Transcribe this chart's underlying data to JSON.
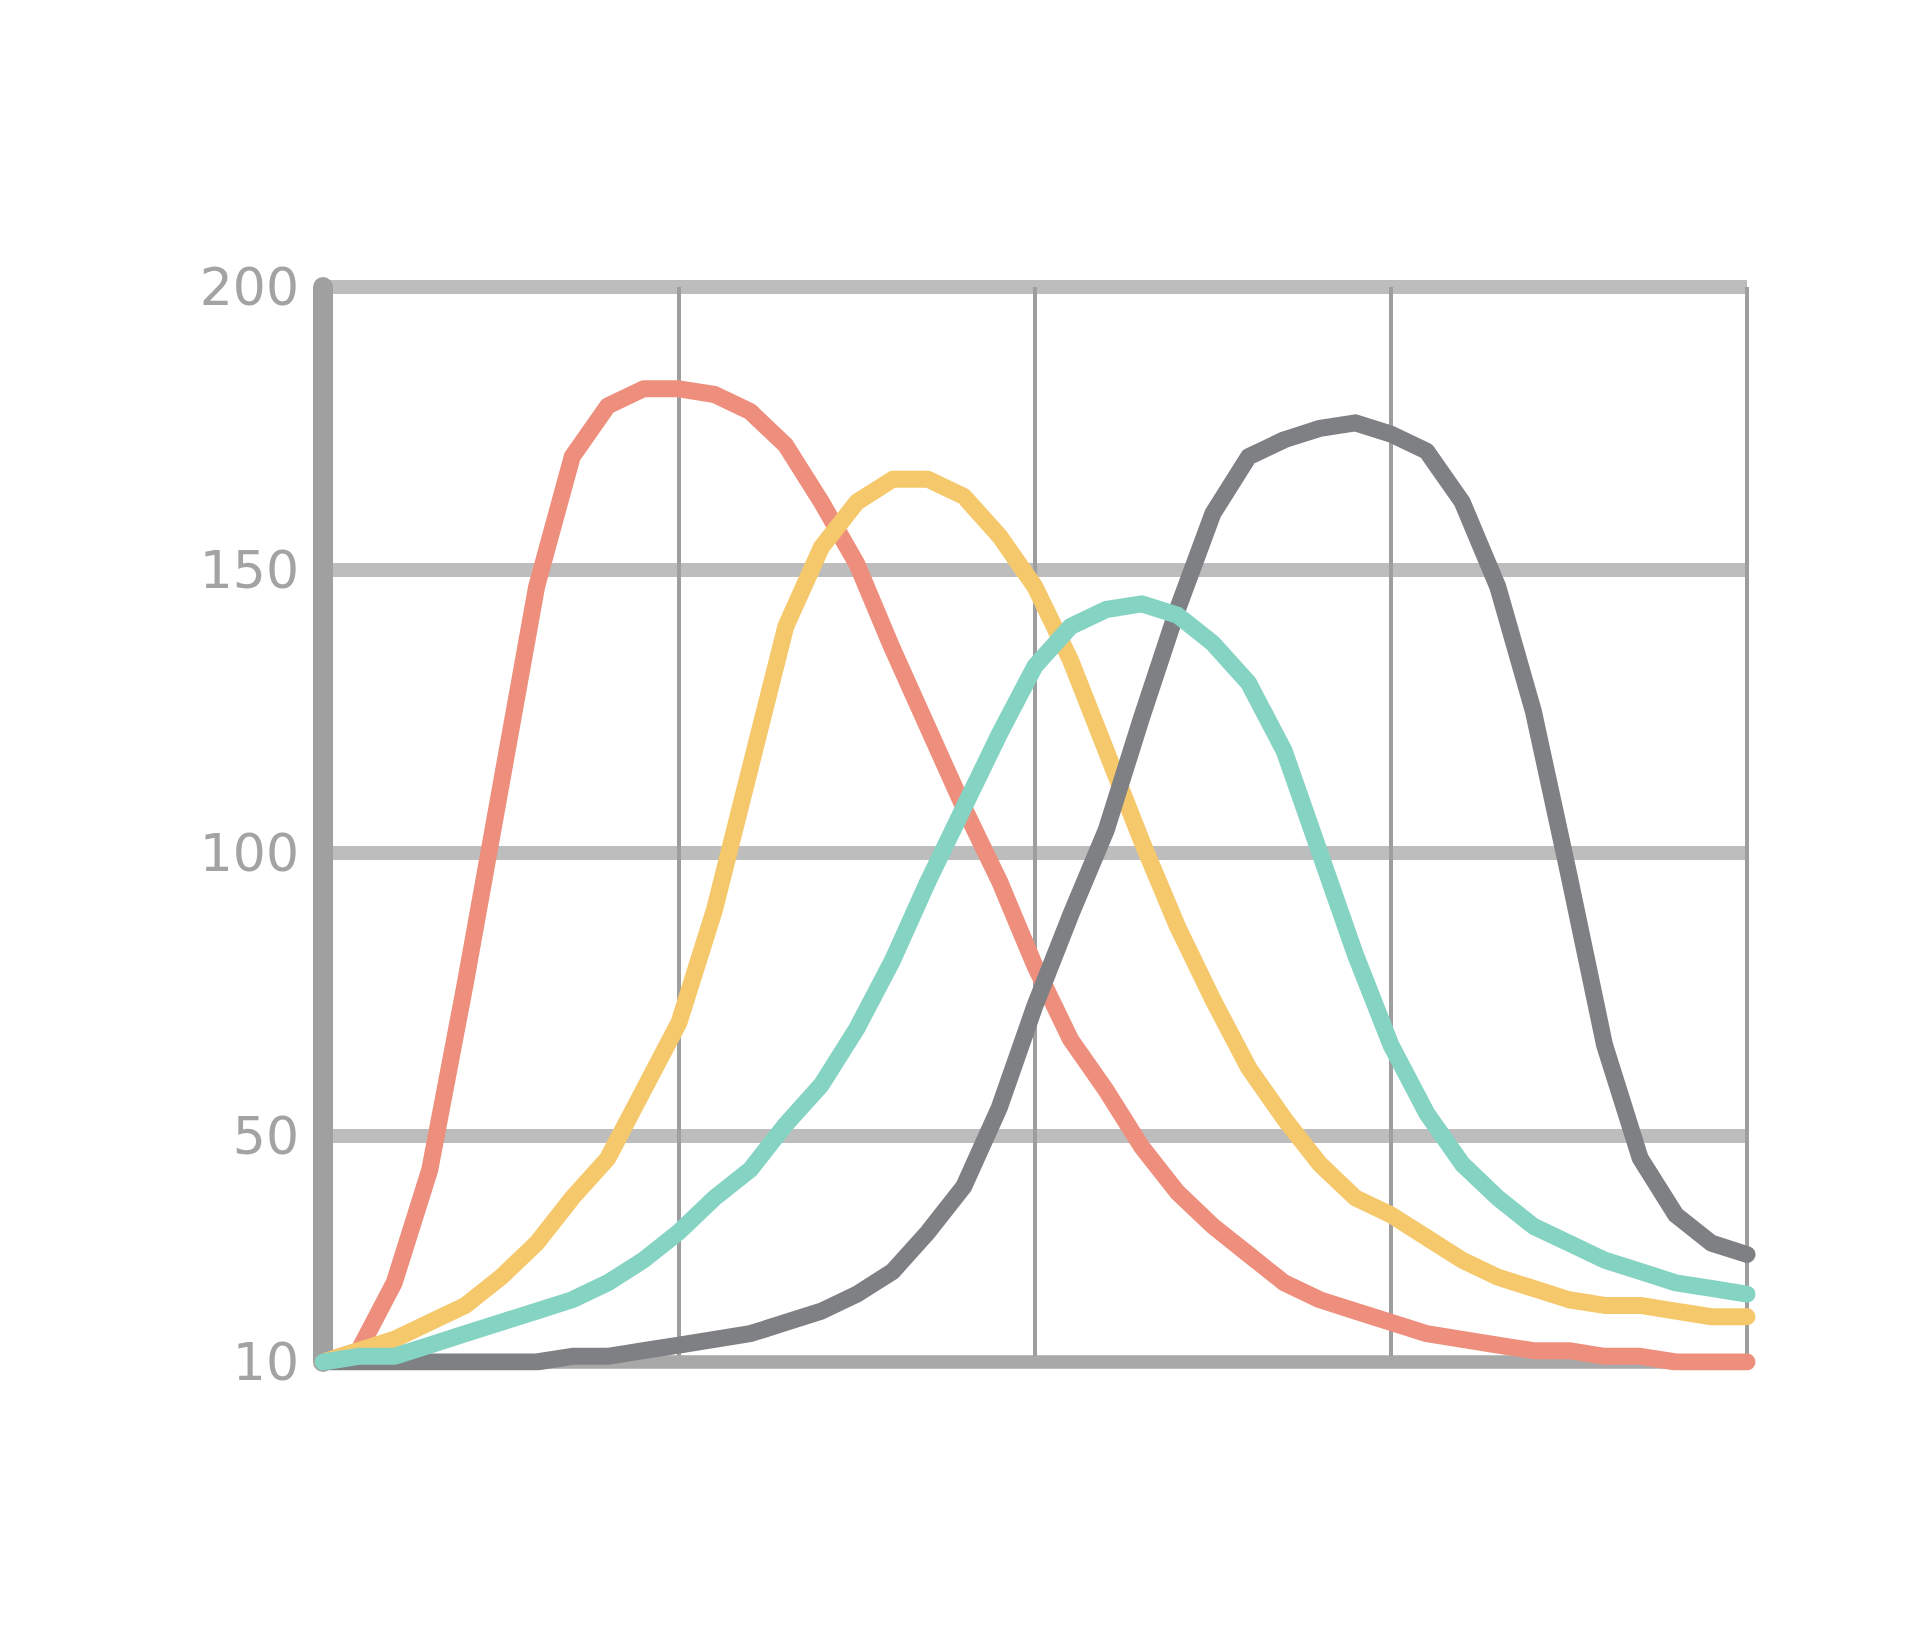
{
  "chart_data": {
    "type": "line",
    "categories": [
      null,
      null,
      null,
      null,
      null,
      null,
      null,
      null,
      null,
      null,
      null,
      null,
      null,
      null,
      null,
      null,
      null,
      null,
      null,
      null,
      null,
      null,
      null,
      null,
      null,
      null,
      null,
      null,
      null,
      null,
      null,
      null,
      null,
      null,
      null,
      null,
      null,
      null,
      null,
      null,
      null
    ],
    "series": [
      {
        "color": "#ee8f7d",
        "values": [
          10,
          12,
          24,
          44,
          77,
          112,
          147,
          170,
          179,
          182,
          182,
          181,
          178,
          172,
          162,
          151,
          136,
          122,
          108,
          95,
          80,
          67,
          58,
          48,
          40,
          34,
          29,
          24,
          21,
          19,
          17,
          15,
          14,
          13,
          12,
          12,
          11,
          11,
          10,
          10,
          10
        ]
      },
      {
        "color": "#f6c86c",
        "values": [
          10,
          12,
          14,
          17,
          20,
          25,
          31,
          39,
          46,
          58,
          70,
          90,
          115,
          140,
          154,
          162,
          166,
          166,
          163,
          156,
          147,
          134,
          118,
          102,
          87,
          74,
          62,
          53,
          45,
          39,
          36,
          32,
          28,
          25,
          23,
          21,
          20,
          20,
          19,
          18,
          18
        ]
      },
      {
        "color": "#7e8083",
        "values": [
          10,
          10,
          10,
          10,
          10,
          10,
          10,
          11,
          11,
          12,
          13,
          14,
          15,
          17,
          19,
          22,
          26,
          33,
          41,
          55,
          73,
          89,
          104,
          124,
          143,
          160,
          170,
          173,
          175,
          176,
          174,
          171,
          162,
          147,
          125,
          96,
          66,
          46,
          36,
          31,
          29
        ]
      },
      {
        "color": "#85d3c3",
        "values": [
          10,
          11,
          11,
          13,
          15,
          17,
          19,
          21,
          24,
          28,
          33,
          39,
          44,
          52,
          59,
          69,
          81,
          95,
          108,
          121,
          133,
          140,
          143,
          144,
          142,
          137,
          130,
          118,
          100,
          82,
          66,
          54,
          45,
          39,
          34,
          31,
          28,
          26,
          24,
          23,
          22
        ]
      }
    ],
    "ylim": [
      10,
      200
    ],
    "yticks": [
      10,
      50,
      100,
      150,
      200
    ],
    "grid": true,
    "marker": "none",
    "line_style": "solid"
  }
}
